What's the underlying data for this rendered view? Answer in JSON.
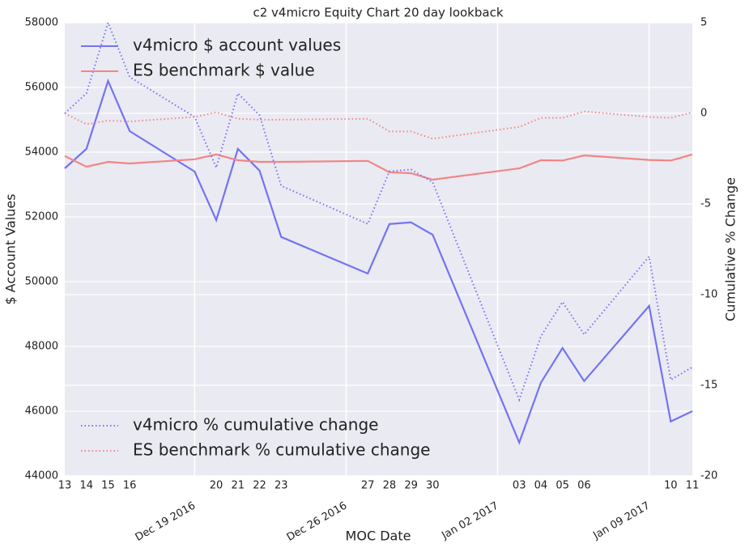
{
  "chart_data": {
    "type": "line",
    "title": "c2 v4micro Equity Chart 20 day lookback",
    "xlabel": "MOC Date",
    "ylabel": "$ Account Values",
    "y2label": "Cumulative % Change",
    "x": [
      "2016-12-13",
      "2016-12-14",
      "2016-12-15",
      "2016-12-16",
      "2016-12-19",
      "2016-12-20",
      "2016-12-21",
      "2016-12-22",
      "2016-12-23",
      "2016-12-27",
      "2016-12-28",
      "2016-12-29",
      "2016-12-30",
      "2017-01-03",
      "2017-01-04",
      "2017-01-05",
      "2017-01-06",
      "2017-01-09",
      "2017-01-10",
      "2017-01-11"
    ],
    "xlim": [
      "2016-12-13",
      "2017-01-11"
    ],
    "xticks": [
      {
        "value": "2016-12-13",
        "label": "13"
      },
      {
        "value": "2016-12-14",
        "label": "14"
      },
      {
        "value": "2016-12-15",
        "label": "15"
      },
      {
        "value": "2016-12-16",
        "label": "16"
      },
      {
        "value": "2016-12-19",
        "label": "Dec 19 2016"
      },
      {
        "value": "2016-12-20",
        "label": "20"
      },
      {
        "value": "2016-12-21",
        "label": "21"
      },
      {
        "value": "2016-12-22",
        "label": "22"
      },
      {
        "value": "2016-12-23",
        "label": "23"
      },
      {
        "value": "2016-12-26",
        "label": "Dec 26 2016"
      },
      {
        "value": "2016-12-27",
        "label": "27"
      },
      {
        "value": "2016-12-28",
        "label": "28"
      },
      {
        "value": "2016-12-29",
        "label": "29"
      },
      {
        "value": "2016-12-30",
        "label": "30"
      },
      {
        "value": "2017-01-02",
        "label": "Jan 02 2017"
      },
      {
        "value": "2017-01-03",
        "label": "03"
      },
      {
        "value": "2017-01-04",
        "label": "04"
      },
      {
        "value": "2017-01-05",
        "label": "05"
      },
      {
        "value": "2017-01-06",
        "label": "06"
      },
      {
        "value": "2017-01-09",
        "label": "Jan 09 2017"
      },
      {
        "value": "2017-01-10",
        "label": "10"
      },
      {
        "value": "2017-01-11",
        "label": "11"
      }
    ],
    "ylim": [
      44000,
      58000
    ],
    "yticks": [
      44000,
      46000,
      48000,
      50000,
      52000,
      54000,
      56000,
      58000
    ],
    "y2lim": [
      -20,
      5
    ],
    "y2ticks": [
      -20,
      -15,
      -10,
      -5,
      0,
      5
    ],
    "grid": true,
    "legend": {
      "y": "upper left",
      "y2": "lower left"
    },
    "series": [
      {
        "name": "v4micro $ account values",
        "color": "#7373f5",
        "style": "solid",
        "values": [
          53500,
          54100,
          56200,
          54650,
          53400,
          51900,
          54100,
          53430,
          51380,
          50250,
          51780,
          51830,
          51450,
          45030,
          46880,
          47950,
          46930,
          49250,
          45680,
          46000
        ]
      },
      {
        "name": "ES benchmark $ value",
        "color": "#f28585",
        "style": "solid",
        "values": [
          53880,
          53550,
          53700,
          53650,
          53780,
          53930,
          53750,
          53700,
          53700,
          53730,
          53380,
          53350,
          53150,
          53500,
          53750,
          53740,
          53900,
          53760,
          53740,
          53930
        ]
      },
      {
        "name": "v4micro % cumulative change",
        "color": "#7373f5",
        "style": "dotted",
        "axis": "y2",
        "values": [
          0,
          1.1,
          5.0,
          2.0,
          -0.2,
          -3.0,
          1.1,
          -0.1,
          -4.0,
          -6.1,
          -3.2,
          -3.1,
          -3.8,
          -15.8,
          -12.3,
          -10.4,
          -12.2,
          -7.9,
          -14.7,
          -14.0
        ]
      },
      {
        "name": "ES benchmark % cumulative change",
        "color": "#f28585",
        "style": "dotted",
        "axis": "y2",
        "values": [
          0,
          -0.6,
          -0.4,
          -0.45,
          -0.2,
          0.05,
          -0.3,
          -0.35,
          -0.35,
          -0.3,
          -1.0,
          -1.0,
          -1.4,
          -0.75,
          -0.25,
          -0.25,
          0.1,
          -0.2,
          -0.25,
          0.05
        ]
      }
    ]
  }
}
